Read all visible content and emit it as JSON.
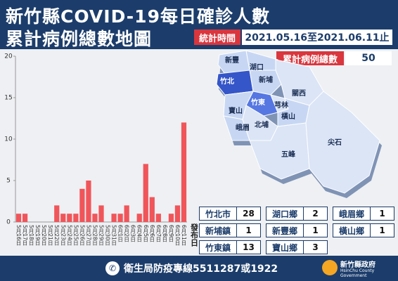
{
  "header": {
    "title_line1": "新竹縣COVID-19每日確診人數",
    "title_line2": "累計病例總數地圖",
    "period_label": "統計時間",
    "period": "2021.05.16至2021.06.11止",
    "total_label": "累計病例總數",
    "total": "50"
  },
  "chart_data": {
    "type": "bar",
    "categories": [
      "5月16日",
      "5月17日",
      "5月18日",
      "5月19日",
      "5月20日",
      "5月21日",
      "5月22日",
      "5月23日",
      "5月24日",
      "5月25日",
      "5月26日",
      "5月27日",
      "5月28日",
      "5月29日",
      "5月30日",
      "5月31日",
      "6月1日",
      "6月2日",
      "6月3日",
      "6月4日",
      "6月5日",
      "6月6日",
      "6月7日",
      "6月8日",
      "6月9日",
      "6月10日",
      "6月11日"
    ],
    "values": [
      1,
      1,
      0,
      0,
      0,
      0,
      2,
      1,
      1,
      1,
      4,
      5,
      1,
      2,
      0,
      1,
      1,
      2,
      0,
      1,
      7,
      3,
      1,
      0,
      1,
      2,
      12
    ],
    "color": "#f0555a",
    "ylim": [
      0,
      20
    ],
    "yticks": [
      0,
      5,
      10,
      15,
      20
    ],
    "x_label": "發布日",
    "grid": false
  },
  "map": {
    "labels": [
      "新豐",
      "湖口",
      "竹北",
      "新埔",
      "關西",
      "芎林",
      "竹東",
      "橫山",
      "寶山",
      "峨眉",
      "北埔",
      "五峰",
      "尖石"
    ]
  },
  "town_table": {
    "rows": [
      {
        "name": "竹北市",
        "count": "28"
      },
      {
        "name": "湖口鄉",
        "count": "2"
      },
      {
        "name": "峨眉鄉",
        "count": "1"
      },
      {
        "name": "新埔鎮",
        "count": "1"
      },
      {
        "name": "新豐鄉",
        "count": "1"
      },
      {
        "name": "橫山鄉",
        "count": "1"
      },
      {
        "name": "竹東鎮",
        "count": "13"
      },
      {
        "name": "寶山鄉",
        "count": "3"
      }
    ]
  },
  "footer": {
    "hotline": "衛生局防疫專線5511287或1922",
    "logo_name": "新竹縣政府",
    "logo_english": "HsinChu County Government"
  }
}
